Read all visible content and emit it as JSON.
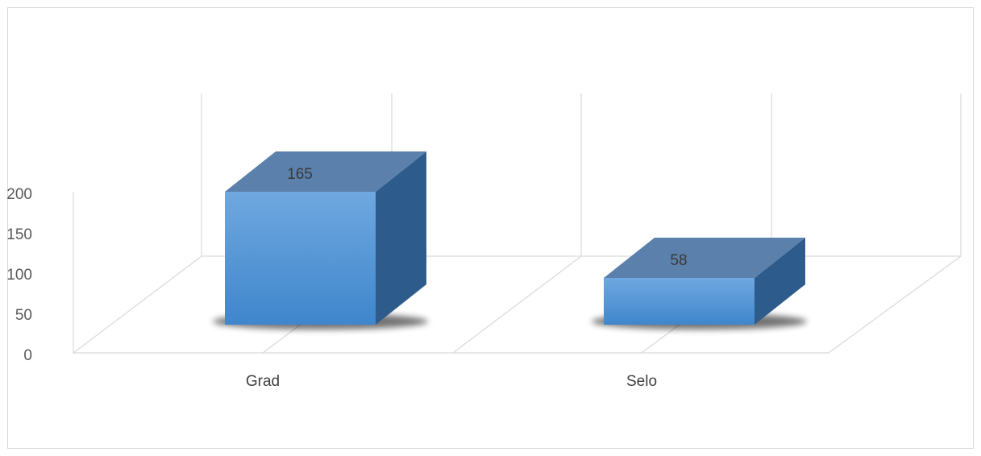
{
  "chart_data": {
    "type": "bar",
    "style": "3d-column",
    "categories": [
      "Grad",
      "Selo"
    ],
    "values": [
      165,
      58
    ],
    "data_labels": [
      "165",
      "58"
    ],
    "yticks": [
      "0",
      "50",
      "100",
      "150",
      "200"
    ],
    "ylim": [
      0,
      200
    ],
    "title": "",
    "xlabel": "",
    "ylabel": "",
    "grid": true,
    "legend": "none",
    "colors": {
      "front_top": "#6fa8e0",
      "front_bottom": "#3f86cc",
      "top": "#5a80ab",
      "side": "#2d5b8c",
      "grid": "#d9d9d9"
    }
  }
}
